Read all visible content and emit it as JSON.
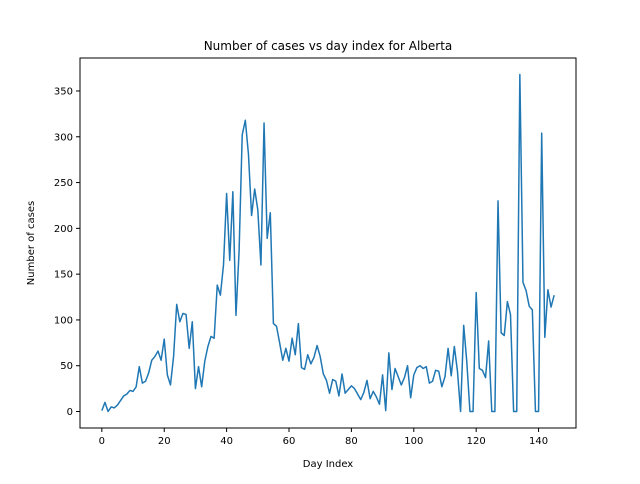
{
  "chart_data": {
    "type": "line",
    "title": "Number of cases vs day index for Alberta",
    "xlabel": "Day Index",
    "ylabel": "Number of cases",
    "xlim": [
      -7,
      152
    ],
    "ylim": [
      -18,
      386
    ],
    "xticks": [
      0,
      20,
      40,
      60,
      80,
      100,
      120,
      140
    ],
    "yticks": [
      0,
      50,
      100,
      150,
      200,
      250,
      300,
      350
    ],
    "grid": false,
    "line_color": "#1f77b4",
    "series": [
      {
        "x": [
          0,
          1,
          2,
          3,
          4,
          5,
          6,
          7,
          8,
          9,
          10,
          11,
          12,
          13,
          14,
          15,
          16,
          17,
          18,
          19,
          20,
          21,
          22,
          23,
          24,
          25,
          26,
          27,
          28,
          29,
          30,
          31,
          32,
          33,
          34,
          35,
          36,
          37,
          38,
          39,
          40,
          41,
          42,
          43,
          44,
          45,
          46,
          47,
          48,
          49,
          50,
          51,
          52,
          53,
          54,
          55,
          56,
          57,
          58,
          59,
          60,
          61,
          62,
          63,
          64,
          65,
          66,
          67,
          68,
          69,
          70,
          71,
          72,
          73,
          74,
          75,
          76,
          77,
          78,
          79,
          80,
          81,
          82,
          83,
          84,
          85,
          86,
          87,
          88,
          89,
          90,
          91,
          92,
          93,
          94,
          95,
          96,
          97,
          98,
          99,
          100,
          101,
          102,
          103,
          104,
          105,
          106,
          107,
          108,
          109,
          110,
          111,
          112,
          113,
          114,
          115,
          116,
          117,
          118,
          119,
          120,
          121,
          122,
          123,
          124,
          125,
          126,
          127,
          128,
          129,
          130,
          131,
          132,
          133,
          134,
          135,
          136,
          137,
          138,
          139,
          140,
          141,
          142,
          143,
          144,
          145
        ],
        "values": [
          1,
          10,
          0,
          5,
          4,
          7,
          12,
          17,
          19,
          23,
          22,
          27,
          49,
          31,
          33,
          42,
          56,
          60,
          66,
          56,
          79,
          40,
          29,
          60,
          117,
          98,
          107,
          106,
          69,
          98,
          25,
          49,
          27,
          55,
          71,
          82,
          80,
          138,
          127,
          160,
          238,
          165,
          240,
          105,
          175,
          302,
          318,
          281,
          214,
          243,
          220,
          160,
          315,
          189,
          217,
          96,
          93,
          75,
          56,
          69,
          55,
          80,
          62,
          96,
          48,
          46,
          62,
          52,
          59,
          72,
          60,
          41,
          34,
          20,
          35,
          33,
          17,
          41,
          20,
          24,
          28,
          25,
          19,
          13,
          21,
          34,
          14,
          22,
          16,
          8,
          40,
          1,
          64,
          24,
          47,
          38,
          29,
          37,
          50,
          15,
          40,
          48,
          50,
          47,
          49,
          31,
          33,
          45,
          44,
          27,
          38,
          69,
          39,
          71,
          44,
          0,
          94,
          54,
          0,
          0,
          130,
          47,
          45,
          37,
          77,
          0,
          0,
          230,
          86,
          83,
          120,
          106,
          0,
          0,
          368,
          141,
          132,
          115,
          111,
          0,
          0,
          304,
          81,
          133,
          114,
          127
        ]
      }
    ]
  }
}
